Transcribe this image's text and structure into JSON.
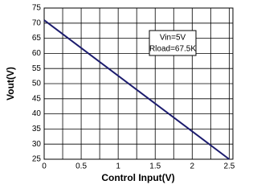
{
  "chart_data": {
    "type": "line",
    "xlabel": "Control Input(V)",
    "ylabel": "Vout(V)",
    "annotations": [
      "Vin=5V",
      "Rload=67.5K"
    ],
    "x": [
      0,
      2.5
    ],
    "series": [
      {
        "name": "Vout",
        "color": "#1c1c6e",
        "values": [
          71,
          25
        ]
      }
    ],
    "xlim": [
      0,
      2.55
    ],
    "ylim": [
      25,
      75
    ],
    "xticks": [
      0,
      0.5,
      1,
      1.5,
      2,
      2.5
    ],
    "xminorgrid": [
      0.25,
      0.75,
      1.25,
      1.75,
      2.25
    ],
    "yticks": [
      25,
      30,
      35,
      40,
      45,
      50,
      55,
      60,
      65,
      70,
      75
    ],
    "grid": true
  }
}
